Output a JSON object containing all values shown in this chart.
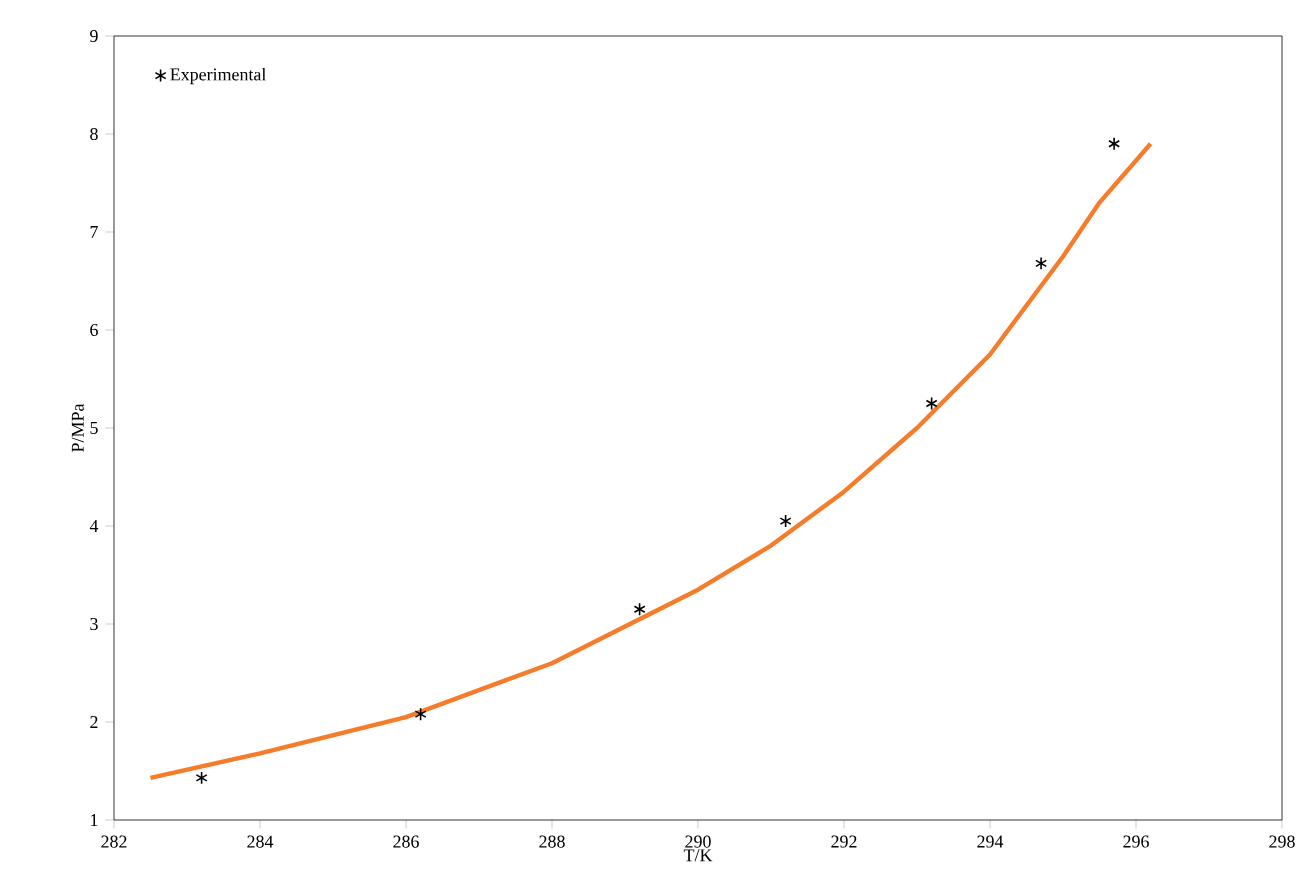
{
  "chart_data": {
    "type": "line",
    "xlabel": "T/K",
    "ylabel": "P/MPa",
    "xlim": [
      282,
      298
    ],
    "xticks": [
      282,
      284,
      286,
      288,
      290,
      292,
      294,
      296,
      298
    ],
    "ylim": [
      1,
      9
    ],
    "yticks": [
      1,
      2,
      3,
      4,
      5,
      6,
      7,
      8,
      9
    ],
    "grid": false,
    "legend": "top left",
    "series": [
      {
        "name": "Experimental",
        "type": "scatter",
        "marker": "cross",
        "color": "#000000",
        "x": [
          283.2,
          286.2,
          289.2,
          291.2,
          293.2,
          294.7,
          295.7
        ],
        "values": [
          1.43,
          2.08,
          3.15,
          4.05,
          5.25,
          6.68,
          7.9
        ]
      },
      {
        "color": "#f47c2a",
        "x": [
          282.5,
          284,
          286,
          288,
          290,
          291,
          292,
          293,
          294,
          295,
          295.5,
          296.2
        ],
        "values": [
          1.43,
          1.68,
          2.05,
          2.6,
          3.35,
          3.8,
          4.35,
          5.0,
          5.75,
          6.75,
          7.3,
          7.9
        ]
      }
    ]
  }
}
